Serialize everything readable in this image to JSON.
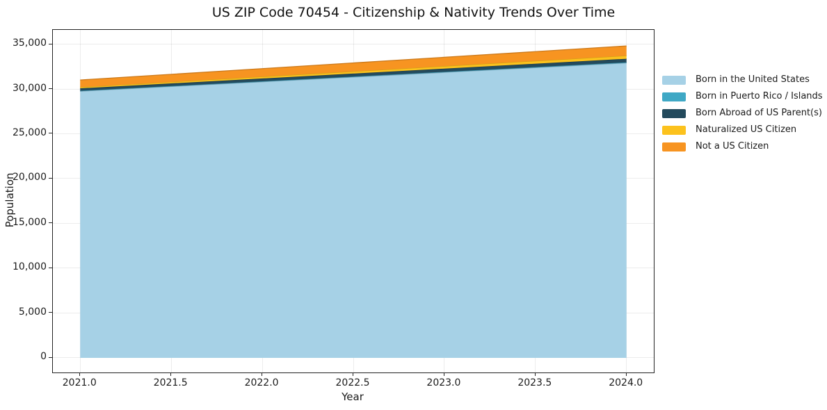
{
  "chart_data": {
    "type": "area",
    "stacked": true,
    "title": "US ZIP Code 70454 - Citizenship & Nativity Trends Over Time",
    "xlabel": "Year",
    "ylabel": "Population",
    "x": [
      2021,
      2022,
      2023,
      2024
    ],
    "series": [
      {
        "name": "Born in the United States",
        "color": "#A6D1E6",
        "values": [
          29750,
          30800,
          31850,
          32900
        ]
      },
      {
        "name": "Born in Puerto Rico / Islands",
        "color": "#3FA8C5",
        "values": [
          50,
          57,
          63,
          70
        ]
      },
      {
        "name": "Born Abroad of US Parent(s)",
        "color": "#234A5D",
        "values": [
          270,
          312,
          354,
          395
        ]
      },
      {
        "name": "Naturalized US Citizen",
        "color": "#FCC21D",
        "values": [
          130,
          205,
          278,
          350
        ]
      },
      {
        "name": "Not a US Citizen",
        "color": "#F79421",
        "values": [
          800,
          895,
          990,
          1085
        ]
      }
    ],
    "xticks": [
      2021.0,
      2021.5,
      2022.0,
      2022.5,
      2023.0,
      2023.5,
      2024.0
    ],
    "xtick_labels": [
      "2021.0",
      "2021.5",
      "2022.0",
      "2022.5",
      "2023.0",
      "2023.5",
      "2024.0"
    ],
    "yticks": [
      0,
      5000,
      10000,
      15000,
      20000,
      25000,
      30000,
      35000
    ],
    "ytick_labels": [
      "0",
      "5,000",
      "10,000",
      "15,000",
      "20,000",
      "25,000",
      "30,000",
      "35,000"
    ],
    "xlim": [
      2020.85,
      2024.15
    ],
    "ylim": [
      -1630,
      36590
    ],
    "grid": true,
    "legend_position": "right"
  }
}
